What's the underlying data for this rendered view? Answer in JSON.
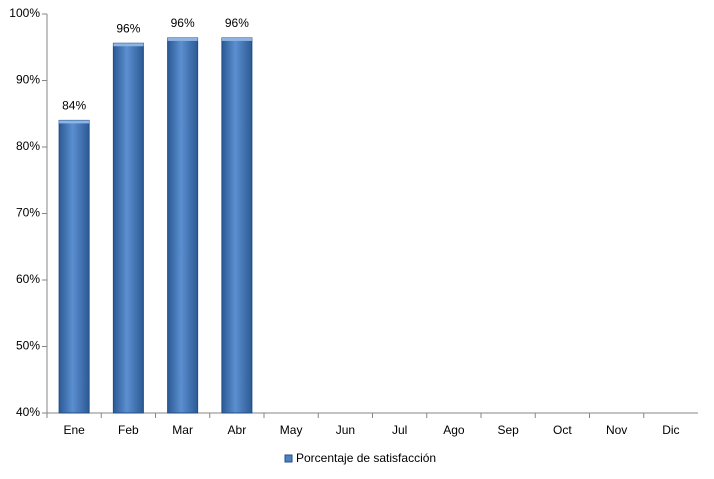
{
  "chart_data": {
    "type": "bar",
    "categories": [
      "Ene",
      "Feb",
      "Mar",
      "Abr",
      "May",
      "Jun",
      "Jul",
      "Ago",
      "Sep",
      "Oct",
      "Nov",
      "Dic"
    ],
    "series": [
      {
        "name": "Porcentaje de satisfacción",
        "color": "#4f81bd",
        "values": [
          84,
          95.6,
          96.4,
          96.4,
          null,
          null,
          null,
          null,
          null,
          null,
          null,
          null
        ],
        "value_labels": [
          "84%",
          "96%",
          "96%",
          "96%",
          null,
          null,
          null,
          null,
          null,
          null,
          null,
          null
        ]
      }
    ],
    "ylim": [
      40,
      100
    ],
    "yticks": [
      {
        "value": 40,
        "label": "40%"
      },
      {
        "value": 50,
        "label": "50%"
      },
      {
        "value": 60,
        "label": "60%"
      },
      {
        "value": 70,
        "label": "70%"
      },
      {
        "value": 80,
        "label": "80%"
      },
      {
        "value": 90,
        "label": "90%"
      },
      {
        "value": 100,
        "label": "100%"
      }
    ],
    "grid": false,
    "legend": "bottom"
  }
}
